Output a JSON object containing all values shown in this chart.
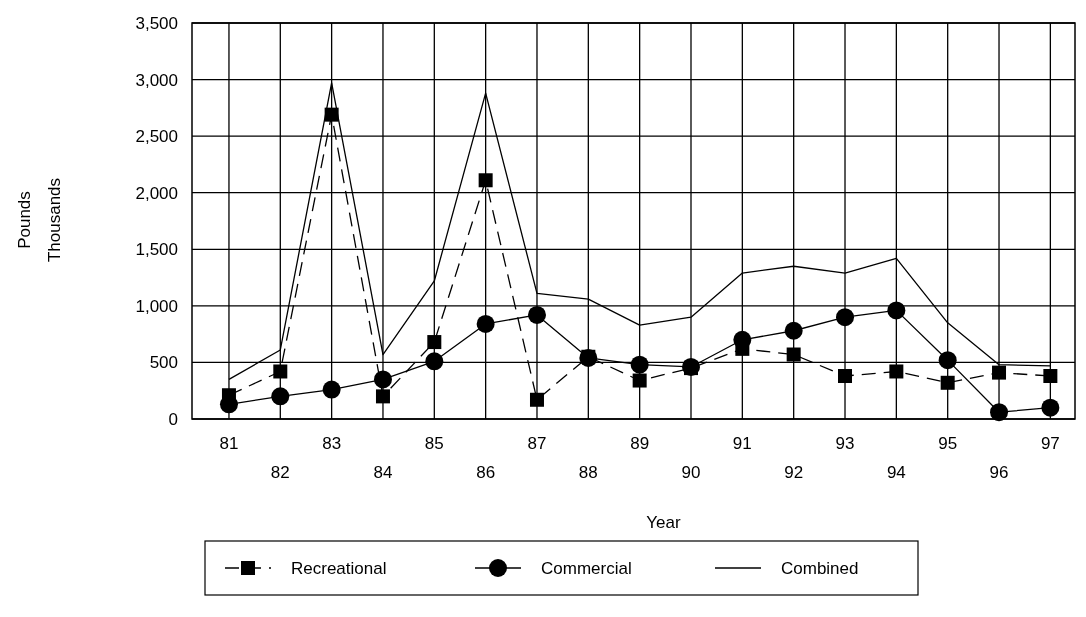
{
  "chart_data": {
    "type": "line",
    "xlabel": "Year",
    "ylabel": "Pounds\nThousands",
    "categories": [
      "81",
      "82",
      "83",
      "84",
      "85",
      "86",
      "87",
      "88",
      "89",
      "90",
      "91",
      "92",
      "93",
      "94",
      "95",
      "96",
      "97"
    ],
    "series": [
      {
        "name": "Recreational",
        "color": "#000000",
        "marker": "square",
        "line_style": "dashed",
        "values": [
          210,
          420,
          2690,
          200,
          680,
          2110,
          170,
          550,
          340,
          450,
          620,
          570,
          380,
          420,
          320,
          410,
          380
        ]
      },
      {
        "name": "Commercial",
        "color": "#000000",
        "marker": "circle",
        "line_style": "solid",
        "values": [
          130,
          200,
          260,
          350,
          510,
          840,
          920,
          540,
          480,
          460,
          700,
          780,
          900,
          960,
          520,
          60,
          100
        ]
      },
      {
        "name": "Combined",
        "color": "#000000",
        "marker": "none",
        "line_style": "solid",
        "values": [
          350,
          610,
          2970,
          570,
          1220,
          2880,
          1110,
          1060,
          830,
          900,
          1290,
          1350,
          1290,
          1420,
          850,
          480,
          470
        ]
      }
    ],
    "ylim": [
      0,
      3500
    ],
    "yticks": [
      0,
      500,
      {
        "value": 1000,
        "label": "1,000"
      },
      {
        "value": 1500,
        "label": "1,500"
      },
      {
        "value": 2000,
        "label": "2,000"
      },
      {
        "value": 2500,
        "label": "2,500"
      },
      {
        "value": 3000,
        "label": "3,000"
      },
      {
        "value": 3500,
        "label": "3,500"
      }
    ],
    "grid": true,
    "legend": "bottom"
  }
}
